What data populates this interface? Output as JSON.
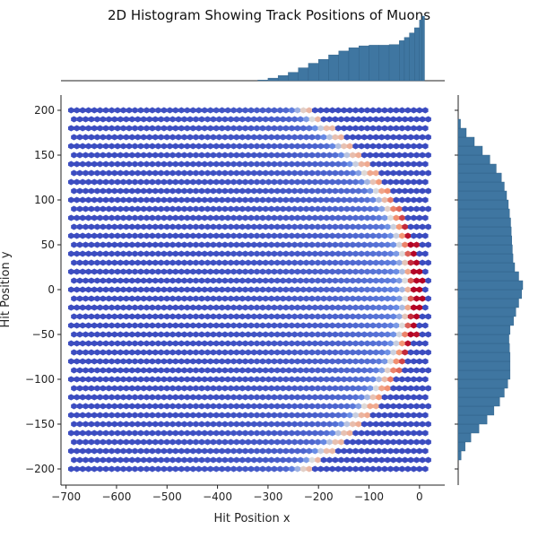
{
  "chart_data": {
    "type": "joint-hexbin",
    "title": "2D Histogram Showing Track Positions of Muons",
    "xlabel": "Hit Position x",
    "ylabel": "Hit Position y",
    "xlim": [
      -710,
      50
    ],
    "ylim": [
      -218,
      217
    ],
    "x_ticks": [
      -700,
      -600,
      -500,
      -400,
      -300,
      -200,
      -100,
      0
    ],
    "y_ticks": [
      -200,
      -150,
      -100,
      -50,
      0,
      50,
      100,
      150,
      200
    ],
    "data_extent": {
      "x": [
        -690,
        20
      ],
      "y": [
        -200,
        200
      ]
    },
    "colormap": "coolwarm",
    "density_features": {
      "ridge_x_at_y0": 0,
      "ridge_x_at_y200": -220,
      "peak": [
        0,
        10
      ]
    },
    "marginal_x": {
      "bins_x": [
        -320,
        -300,
        -280,
        -260,
        -240,
        -220,
        -200,
        -180,
        -160,
        -140,
        -120,
        -100,
        -80,
        -60,
        -40,
        -30,
        -20,
        -10,
        0,
        5,
        10
      ],
      "counts": [
        0.01,
        0.04,
        0.08,
        0.13,
        0.2,
        0.27,
        0.33,
        0.4,
        0.46,
        0.51,
        0.54,
        0.55,
        0.55,
        0.56,
        0.62,
        0.67,
        0.74,
        0.82,
        0.94,
        1.0,
        0.1
      ]
    },
    "marginal_y": {
      "bins_y": [
        -200,
        -190,
        -180,
        -170,
        -160,
        -150,
        -140,
        -130,
        -120,
        -110,
        -100,
        -90,
        -80,
        -70,
        -60,
        -50,
        -40,
        -30,
        -20,
        -10,
        0,
        10,
        20,
        30,
        40,
        50,
        60,
        70,
        80,
        90,
        100,
        110,
        120,
        130,
        140,
        150,
        160,
        170,
        180
      ],
      "counts": [
        0.0,
        0.05,
        0.12,
        0.22,
        0.36,
        0.5,
        0.62,
        0.72,
        0.8,
        0.86,
        0.9,
        0.9,
        0.9,
        0.89,
        0.88,
        0.9,
        0.96,
        1.0,
        1.05,
        1.1,
        1.12,
        1.05,
        0.98,
        0.95,
        0.94,
        0.93,
        0.92,
        0.91,
        0.89,
        0.87,
        0.84,
        0.8,
        0.75,
        0.66,
        0.55,
        0.42,
        0.28,
        0.14,
        0.04
      ]
    },
    "marginal_color": "#3f76a1"
  }
}
